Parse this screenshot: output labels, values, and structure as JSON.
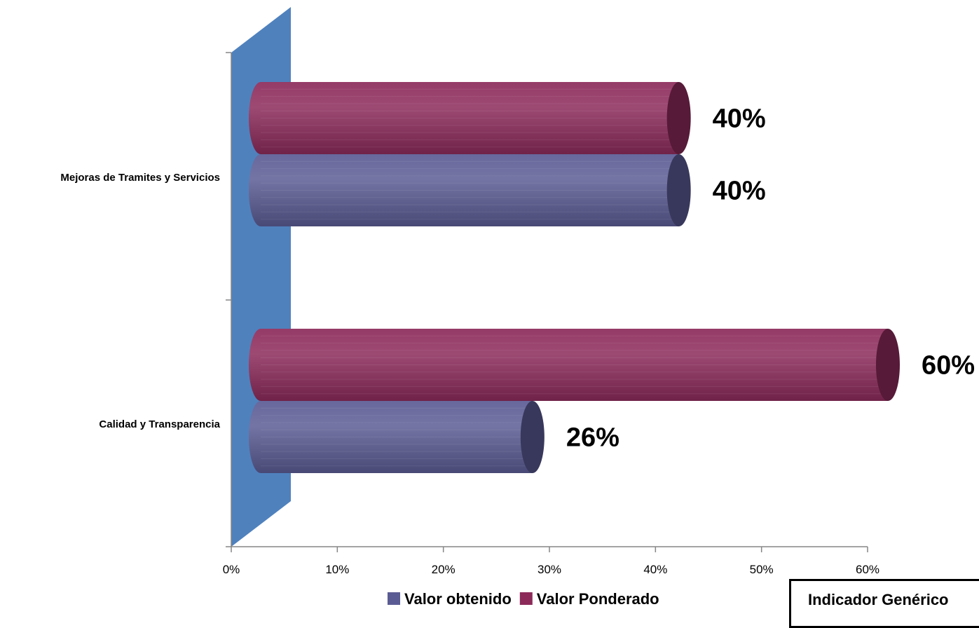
{
  "chart_data": {
    "type": "bar",
    "orientation": "horizontal",
    "style": "3d-cylinder",
    "categories": [
      "Mejoras de Tramites y Servicios",
      "Calidad y Transparencia"
    ],
    "series": [
      {
        "name": "Valor obtenido",
        "values": [
          40,
          26
        ],
        "labels": [
          "40%",
          "26%"
        ],
        "color": "#5b5b94"
      },
      {
        "name": "Valor Ponderado",
        "values": [
          40,
          60
        ],
        "labels": [
          "40%",
          "60%"
        ],
        "color": "#8c2a5a"
      }
    ],
    "xlim": [
      0,
      60
    ],
    "xticks": [
      "0%",
      "10%",
      "20%",
      "30%",
      "40%",
      "50%",
      "60%"
    ],
    "grid": false,
    "legend_position": "bottom",
    "wall_color": "#4f81bd"
  },
  "footer_box": {
    "text": "Indicador Genérico"
  }
}
